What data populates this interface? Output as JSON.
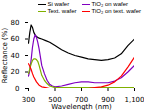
{
  "chart_data": {
    "type": "line",
    "xlabel": "Wavelength (nm)",
    "ylabel": "Reflectance (%)",
    "xlim": [
      300,
      1100
    ],
    "ylim": [
      0,
      80
    ],
    "xticks": [
      300,
      500,
      700,
      900,
      1100
    ],
    "yticks": [
      0,
      20,
      40,
      60,
      80
    ],
    "legend": "upper right",
    "series": [
      {
        "name": "Si wafer",
        "color": "#000000",
        "x": [
          300,
          310,
          320,
          330,
          340,
          350,
          360,
          380,
          400,
          430,
          460,
          500,
          550,
          600,
          650,
          700,
          750,
          800,
          850,
          900,
          950,
          1000,
          1050,
          1100
        ],
        "values": [
          55,
          68,
          77,
          74,
          68,
          65,
          63,
          61,
          60,
          58,
          56,
          52,
          47,
          43,
          40,
          38,
          36,
          35,
          34,
          35,
          37,
          42,
          52,
          60
        ]
      },
      {
        "name": "TiO₂ on wafer",
        "color": "#8000c0",
        "x": [
          300,
          310,
          320,
          330,
          340,
          350,
          360,
          370,
          380,
          390,
          400,
          420,
          440,
          460,
          480,
          500,
          550,
          600,
          650,
          700,
          750,
          800,
          850,
          900,
          950,
          1000,
          1050,
          1100
        ],
        "values": [
          15,
          22,
          35,
          50,
          60,
          65,
          62,
          56,
          48,
          38,
          28,
          18,
          10,
          5,
          3,
          2,
          3,
          5,
          7,
          8,
          8,
          7,
          7,
          7,
          9,
          13,
          20,
          28
        ]
      },
      {
        "name": "Text. wafer",
        "color": "#80b000",
        "x": [
          300,
          310,
          320,
          330,
          340,
          350,
          360,
          370,
          380,
          390,
          400,
          420,
          440,
          460,
          500,
          550,
          600,
          650,
          700,
          750,
          800,
          850,
          900,
          950,
          1000,
          1050,
          1100
        ],
        "values": [
          18,
          24,
          30,
          34,
          36,
          36,
          35,
          33,
          28,
          22,
          16,
          10,
          6,
          3,
          1,
          1,
          1,
          1,
          1,
          1,
          1,
          1,
          1,
          1,
          1,
          1,
          1
        ]
      },
      {
        "name": "TiO₂ on text. wafer",
        "color": "#ff0000",
        "x": [
          300,
          310,
          320,
          330,
          340,
          360,
          380,
          400,
          430,
          460,
          500,
          550,
          600,
          650,
          700,
          750,
          800,
          850,
          900,
          950,
          1000,
          1050,
          1100
        ],
        "values": [
          30,
          27,
          23,
          18,
          14,
          8,
          4,
          2,
          1,
          0,
          0,
          0,
          0,
          0,
          0,
          0,
          1,
          2,
          4,
          8,
          15,
          26,
          38
        ]
      }
    ]
  }
}
